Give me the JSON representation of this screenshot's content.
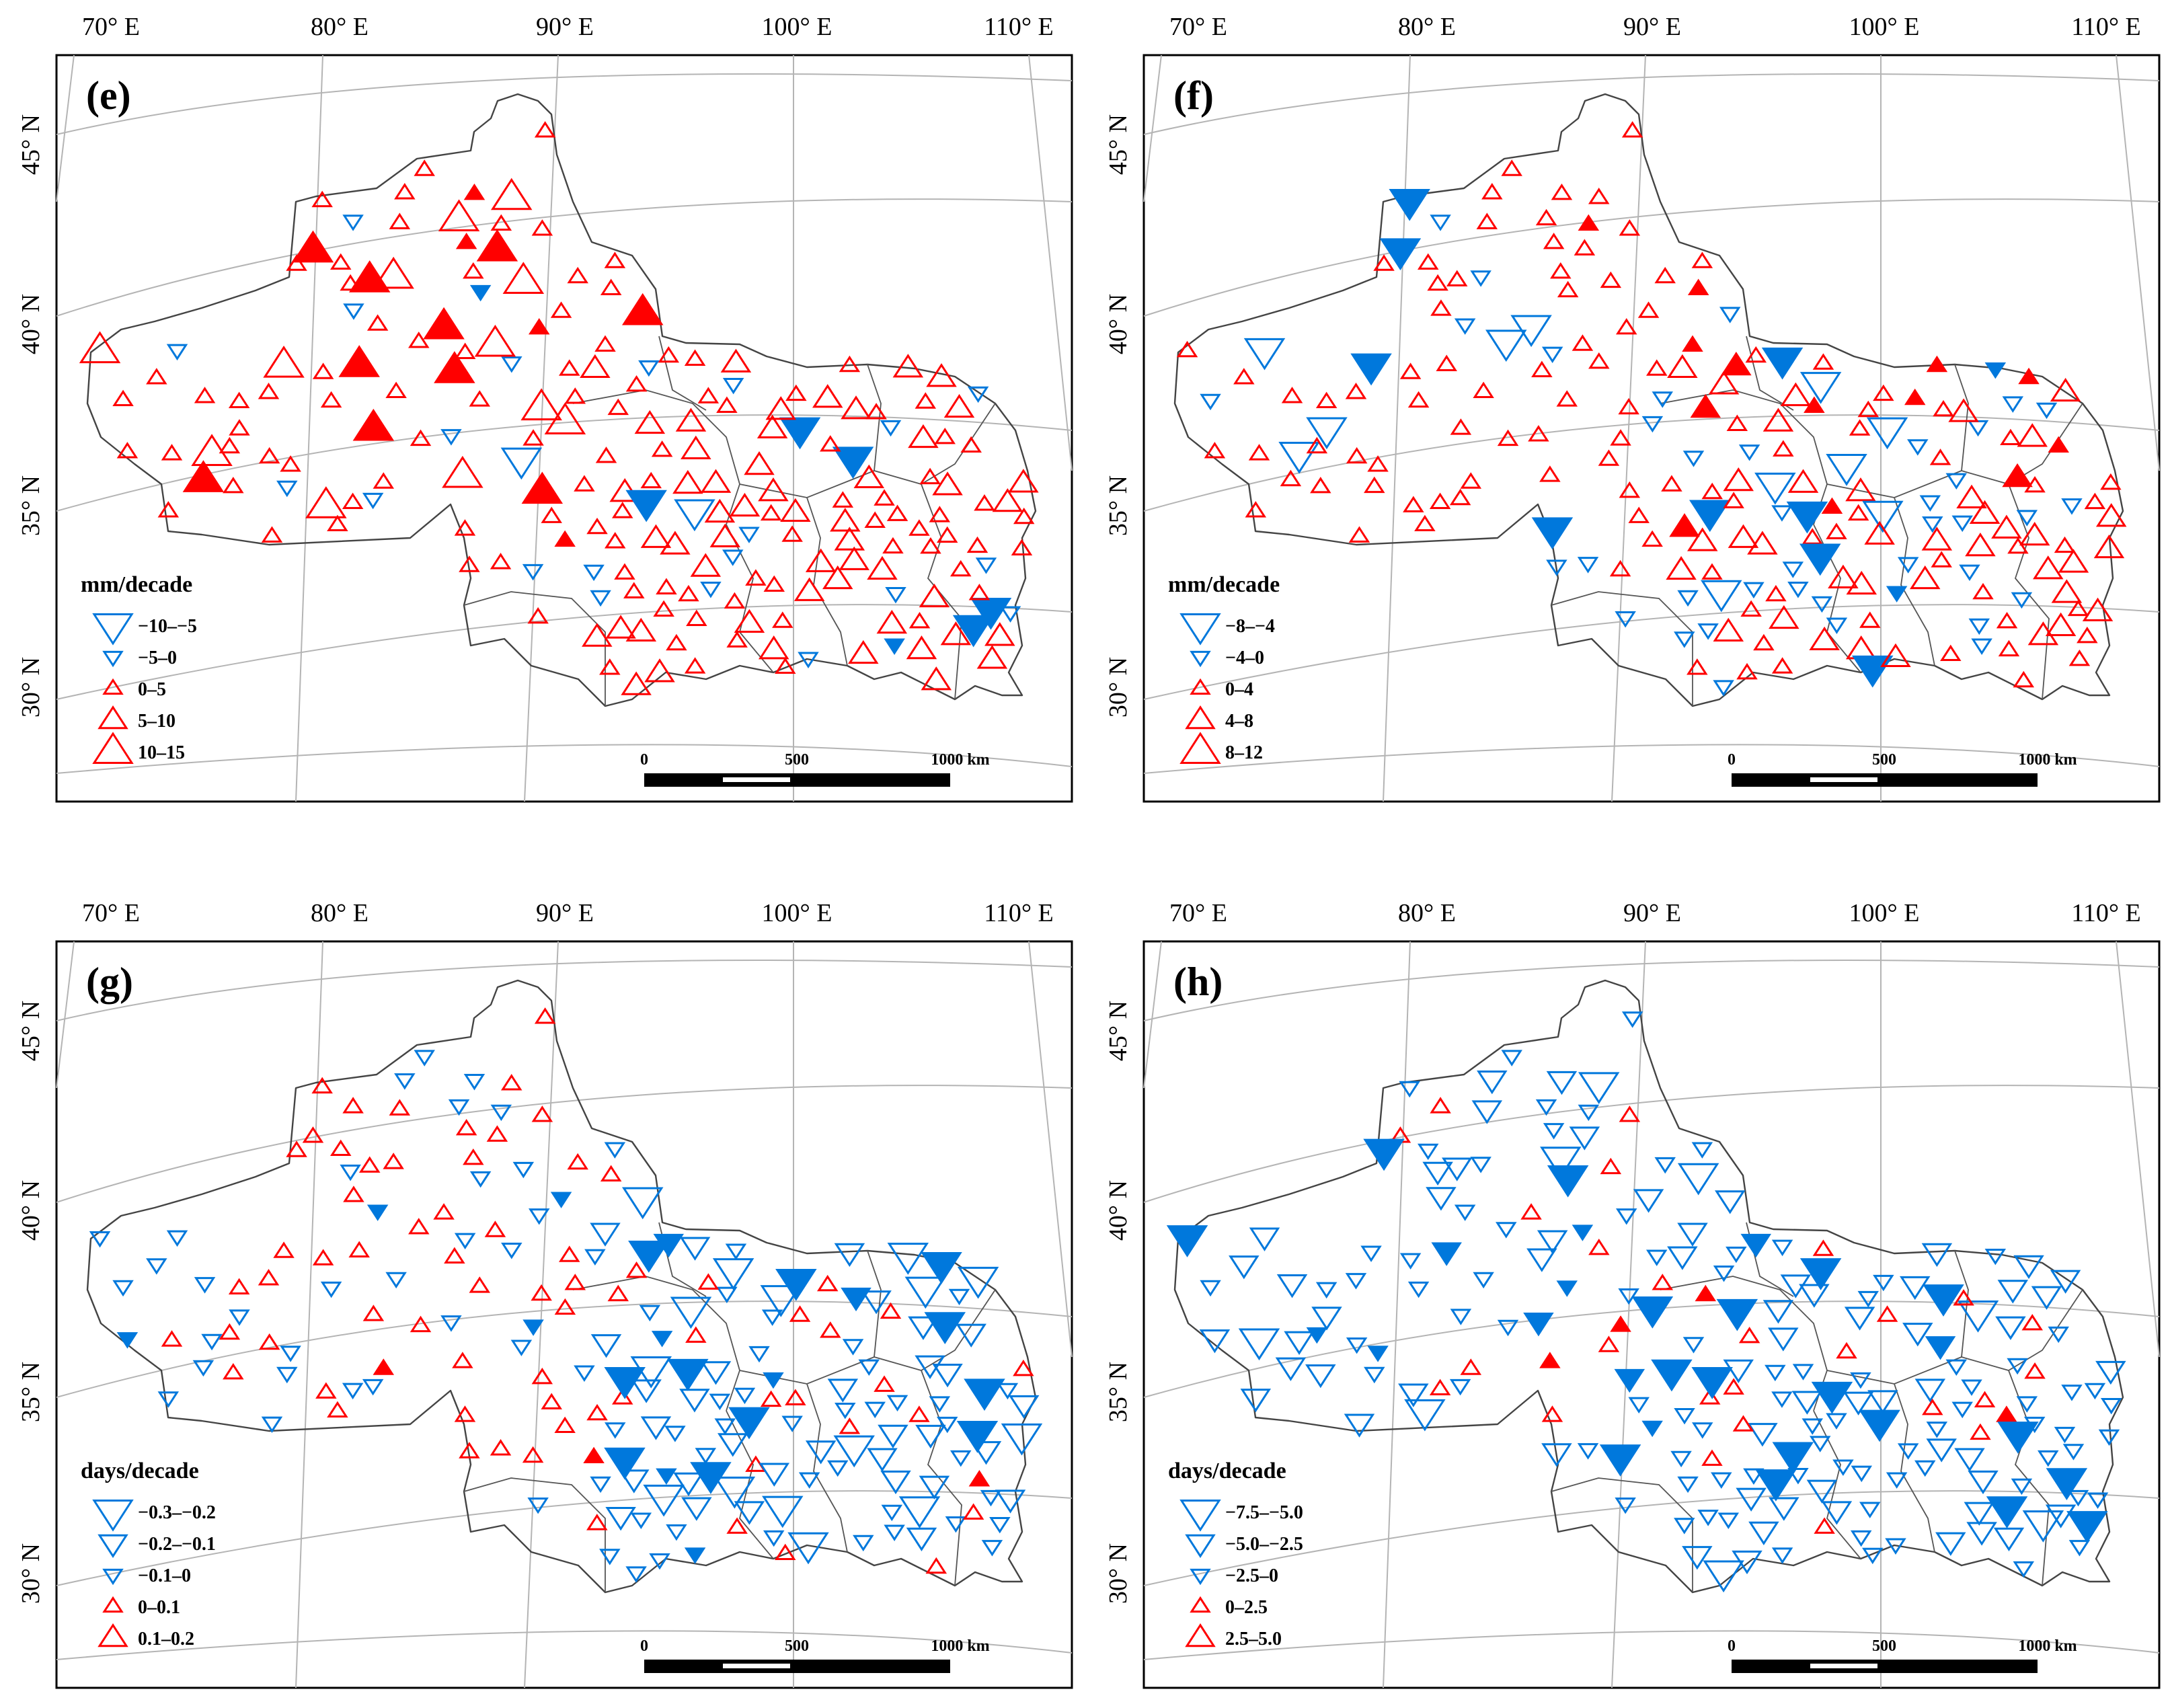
{
  "colors": {
    "increase": "#ff0000",
    "decrease": "#0078dc"
  },
  "axes": {
    "lon_labels": [
      "70° E",
      "80° E",
      "90° E",
      "100° E",
      "110° E"
    ],
    "lat_labels": [
      "45° N",
      "40° N",
      "35° N",
      "30° N"
    ]
  },
  "scale_bar": {
    "start": "0",
    "mid": "500",
    "end": "1000 km"
  },
  "panels": [
    {
      "label": "(e)",
      "unit": "mm/decade",
      "legend": [
        {
          "label": "−10–−5",
          "direction": "down",
          "size": 5
        },
        {
          "label": "−5–0",
          "direction": "down",
          "size": 3
        },
        {
          "label": "0–5",
          "direction": "up",
          "size": 3
        },
        {
          "label": "5–10",
          "direction": "up",
          "size": 4
        },
        {
          "label": "10–15",
          "direction": "up",
          "size": 5
        }
      ],
      "trend_summary": {
        "increasing_stations": "majority",
        "decreasing_stations": "few"
      }
    },
    {
      "label": "(f)",
      "unit": "mm/decade",
      "legend": [
        {
          "label": "−8–−4",
          "direction": "down",
          "size": 5
        },
        {
          "label": "−4–0",
          "direction": "down",
          "size": 3
        },
        {
          "label": "0–4",
          "direction": "up",
          "size": 3
        },
        {
          "label": "4–8",
          "direction": "up",
          "size": 4
        },
        {
          "label": "8–12",
          "direction": "up",
          "size": 5
        }
      ],
      "trend_summary": {
        "increasing_stations": "majority",
        "decreasing_stations": "some"
      }
    },
    {
      "label": "(g)",
      "unit": "days/decade",
      "legend": [
        {
          "label": "−0.3–−0.2",
          "direction": "down",
          "size": 5
        },
        {
          "label": "−0.2–−0.1",
          "direction": "down",
          "size": 4
        },
        {
          "label": "−0.1–0",
          "direction": "down",
          "size": 3
        },
        {
          "label": "0–0.1",
          "direction": "up",
          "size": 3
        },
        {
          "label": "0.1–0.2",
          "direction": "up",
          "size": 4
        }
      ],
      "trend_summary": {
        "increasing_stations": "northwest",
        "decreasing_stations": "southeast"
      }
    },
    {
      "label": "(h)",
      "unit": "days/decade",
      "legend": [
        {
          "label": "−7.5–−5.0",
          "direction": "down",
          "size": 5
        },
        {
          "label": "−5.0–−2.5",
          "direction": "down",
          "size": 4
        },
        {
          "label": "−2.5–0",
          "direction": "down",
          "size": 3
        },
        {
          "label": "0–2.5",
          "direction": "up",
          "size": 3
        },
        {
          "label": "2.5–5.0",
          "direction": "up",
          "size": 4
        }
      ],
      "trend_summary": {
        "increasing_stations": "few",
        "decreasing_stations": "majority"
      }
    }
  ]
}
